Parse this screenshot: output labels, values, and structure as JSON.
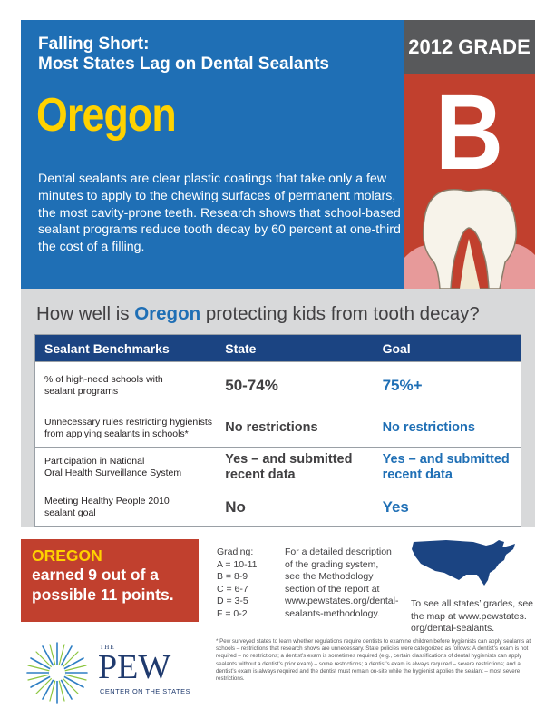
{
  "header": {
    "title_line1": "Falling Short:",
    "title_line2": "Most States Lag on Dental Sealants",
    "state": "Oregon",
    "description": "Dental sealants are clear plastic coatings that take only a few minutes to apply to the chewing surfaces of permanent molars, the most cavity-prone teeth. Research shows that school-based sealant programs reduce tooth decay by 60 percent at one-third the cost of a filling."
  },
  "grade": {
    "label": "2012 GRADE",
    "letter": "B"
  },
  "colors": {
    "blue": "#1f6fb5",
    "navy": "#1b4482",
    "red": "#c1402e",
    "yellow": "#ffd200",
    "gray": "#d8d9da"
  },
  "question": {
    "before": "How well is ",
    "state": "Oregon",
    "after": " protecting kids from tooth decay?"
  },
  "table": {
    "headers": [
      "Sealant Benchmarks",
      "State",
      "Goal"
    ],
    "rows": [
      {
        "benchmark_l1": "% of high-need schools with",
        "benchmark_l2": "sealant programs",
        "state_l1": "50-74%",
        "state_l2": "",
        "goal_l1": "75%+",
        "goal_l2": ""
      },
      {
        "benchmark_l1": "Unnecessary rules restricting hygienists",
        "benchmark_l2": "from applying sealants in schools*",
        "state_l1": "No restrictions",
        "state_l2": "",
        "goal_l1": "No restrictions",
        "goal_l2": ""
      },
      {
        "benchmark_l1": "Participation in National",
        "benchmark_l2": "Oral Health Surveillance System",
        "state_l1": "Yes – and submitted",
        "state_l2": "recent data",
        "goal_l1": "Yes – and submitted",
        "goal_l2": "recent data"
      },
      {
        "benchmark_l1": "Meeting Healthy People 2010",
        "benchmark_l2": "sealant goal",
        "state_l1": "No",
        "state_l2": "",
        "goal_l1": "Yes",
        "goal_l2": ""
      }
    ]
  },
  "score": {
    "state": "OREGON",
    "line1": "earned 9 out of a",
    "line2": "possible 11 points."
  },
  "grading": {
    "title": "Grading:",
    "lines": [
      "A = 10-11",
      "B = 8-9",
      "C = 6-7",
      "D = 3-5",
      "F = 0-2"
    ]
  },
  "method": {
    "lines": [
      "For a detailed description",
      "of the grading system,",
      "see the Methodology",
      "section of the report at",
      "www.pewstates.org/dental-",
      "sealants-methodology."
    ]
  },
  "map": {
    "icon": "us-map-icon",
    "lines": [
      "To see all states’ grades, see",
      "the map at www.pewstates.",
      "org/dental-sealants."
    ]
  },
  "logo": {
    "the": "THE",
    "name": "PEW",
    "sub": "CENTER ON THE STATES"
  },
  "footnote": "* Pew surveyed states to learn whether regulations require dentists to examine children before hygienists can apply sealants at schools – restrictions that research shows are unnecessary. State policies were categorized as follows: A dentist’s exam is not required – no restrictions; a dentist’s exam is sometimes required (e.g., certain classifications of dental hygienists can apply sealants without a dentist’s prior exam) – some restrictions; a dentist’s exam is always required – severe restrictions; and a dentist’s exam is always required and the dentist must remain on-site while the hygienist applies the sealant – most severe restrictions."
}
